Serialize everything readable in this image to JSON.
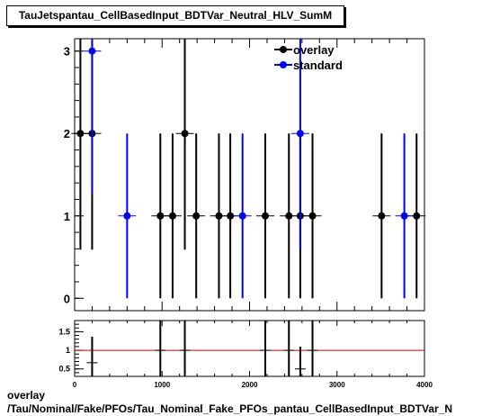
{
  "title": "TauJetspantau_CellBasedInput_BDTVar_Neutral_HLV_SumM",
  "footer": {
    "line1": "overlay",
    "line2": "/Tau/Nominal/Fake/PFOs/Tau_Nominal_Fake_PFOs_pantau_CellBasedInput_BDTVar_N"
  },
  "chart_data": [
    {
      "type": "scatter",
      "panel": "main",
      "xlim": [
        0,
        4000
      ],
      "ylim": [
        -0.15,
        3.15
      ],
      "y_ticks": [
        0,
        1,
        2,
        3
      ],
      "x_ticks": [],
      "legend": {
        "placement": "top-right",
        "entries": [
          "overlay",
          "standard"
        ]
      },
      "series": [
        {
          "name": "overlay",
          "color": "#000000",
          "points": [
            {
              "x": 66,
              "y": 2,
              "err": 1.41
            },
            {
              "x": 200,
              "y": 2,
              "err": 1.41
            },
            {
              "x": 980,
              "y": 1,
              "err": 1
            },
            {
              "x": 1120,
              "y": 1,
              "err": 1
            },
            {
              "x": 1260,
              "y": 2,
              "err": 1.41
            },
            {
              "x": 1390,
              "y": 1,
              "err": 1
            },
            {
              "x": 1650,
              "y": 1,
              "err": 1
            },
            {
              "x": 1780,
              "y": 1,
              "err": 1
            },
            {
              "x": 2180,
              "y": 1,
              "err": 1
            },
            {
              "x": 2450,
              "y": 1,
              "err": 1
            },
            {
              "x": 2580,
              "y": 1,
              "err": 1
            },
            {
              "x": 2720,
              "y": 1,
              "err": 1
            },
            {
              "x": 3510,
              "y": 1,
              "err": 1
            },
            {
              "x": 3910,
              "y": 1,
              "err": 1
            }
          ]
        },
        {
          "name": "standard",
          "color": "#0000ff",
          "points": [
            {
              "x": 200,
              "y": 3,
              "err": 1.73
            },
            {
              "x": 600,
              "y": 1,
              "err": 1
            },
            {
              "x": 1920,
              "y": 1,
              "err": 1
            },
            {
              "x": 2580,
              "y": 2,
              "err": 1.41
            },
            {
              "x": 3770,
              "y": 1,
              "err": 1
            }
          ]
        }
      ]
    },
    {
      "type": "scatter",
      "panel": "ratio",
      "xlim": [
        0,
        4000
      ],
      "ylim": [
        0.3,
        1.8
      ],
      "y_ticks": [
        0.5,
        1,
        1.5
      ],
      "y_tick_labels": [
        "0.5",
        "1",
        "1.5"
      ],
      "x_ticks": [
        0,
        1000,
        2000,
        3000,
        4000
      ],
      "x_tick_labels": [
        "0",
        "1000",
        "2000",
        "3000",
        "4000"
      ],
      "reference_line": {
        "y": 1,
        "color": "#cc0000"
      },
      "series": [
        {
          "color": "#000000",
          "points": [
            {
              "x": 200,
              "y": 0.667,
              "err": 0.7
            },
            {
              "x": 980,
              "y": 1.0,
              "err": 1.2
            },
            {
              "x": 1260,
              "y": 1.0,
              "err": 1.2
            },
            {
              "x": 2180,
              "y": 1.0,
              "err": 1.2
            },
            {
              "x": 2450,
              "y": 1.0,
              "err": 1.2
            },
            {
              "x": 2580,
              "y": 0.5,
              "err": 0.6
            },
            {
              "x": 2720,
              "y": 1.0,
              "err": 1.2
            }
          ]
        }
      ]
    }
  ]
}
